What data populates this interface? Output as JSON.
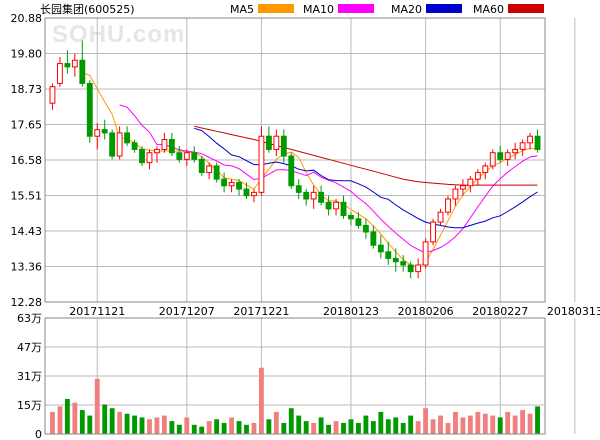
{
  "header": {
    "title": "长园集团(600525)",
    "watermark": "SOHU.com"
  },
  "legend": [
    {
      "name": "MA5",
      "color": "#ff9900"
    },
    {
      "name": "MA10",
      "color": "#ff00ff"
    },
    {
      "name": "MA20",
      "color": "#0000cc"
    },
    {
      "name": "MA60",
      "color": "#cc0000"
    }
  ],
  "colors": {
    "up": "#ff0000",
    "down": "#009900",
    "volume_up": "#f08080",
    "volume_down": "#009900",
    "grid": "#bbbbbb"
  },
  "chart_data": [
    {
      "type": "candlestick",
      "title": "长园集团(600525)",
      "ylim": [
        12.28,
        20.88
      ],
      "yticks": [
        "20.88",
        "19.80",
        "18.73",
        "17.65",
        "16.58",
        "15.51",
        "14.43",
        "13.36",
        "12.28"
      ],
      "xticks": [
        {
          "label": "20171121",
          "index": 6
        },
        {
          "label": "20171207",
          "index": 18
        },
        {
          "label": "20171221",
          "index": 28
        },
        {
          "label": "20180123",
          "index": 40
        },
        {
          "label": "20180206",
          "index": 50
        },
        {
          "label": "20180227",
          "index": 60
        },
        {
          "label": "20180313",
          "index": 70
        }
      ],
      "ohlc": [
        [
          18.3,
          18.9,
          18.1,
          18.8
        ],
        [
          18.9,
          19.7,
          18.8,
          19.5
        ],
        [
          19.5,
          19.9,
          19.2,
          19.4
        ],
        [
          19.4,
          19.8,
          19.1,
          19.6
        ],
        [
          19.6,
          20.2,
          18.8,
          18.9
        ],
        [
          18.9,
          19.0,
          17.1,
          17.3
        ],
        [
          17.3,
          17.7,
          16.9,
          17.5
        ],
        [
          17.5,
          17.8,
          17.2,
          17.4
        ],
        [
          17.4,
          17.5,
          16.6,
          16.7
        ],
        [
          16.7,
          17.6,
          16.6,
          17.4
        ],
        [
          17.4,
          17.6,
          17.0,
          17.1
        ],
        [
          17.1,
          17.2,
          16.8,
          16.9
        ],
        [
          16.9,
          17.0,
          16.4,
          16.5
        ],
        [
          16.5,
          16.9,
          16.3,
          16.8
        ],
        [
          16.8,
          17.0,
          16.5,
          16.9
        ],
        [
          16.9,
          17.4,
          16.8,
          17.2
        ],
        [
          17.2,
          17.4,
          16.7,
          16.8
        ],
        [
          16.8,
          17.0,
          16.5,
          16.6
        ],
        [
          16.6,
          16.9,
          16.4,
          16.8
        ],
        [
          16.8,
          17.0,
          16.5,
          16.6
        ],
        [
          16.6,
          16.7,
          16.1,
          16.2
        ],
        [
          16.2,
          16.5,
          16.0,
          16.4
        ],
        [
          16.4,
          16.5,
          15.9,
          16.0
        ],
        [
          16.0,
          16.2,
          15.6,
          15.8
        ],
        [
          15.8,
          16.0,
          15.6,
          15.9
        ],
        [
          15.9,
          16.0,
          15.5,
          15.7
        ],
        [
          15.7,
          15.9,
          15.4,
          15.5
        ],
        [
          15.5,
          15.7,
          15.3,
          15.6
        ],
        [
          15.6,
          17.6,
          15.5,
          17.3
        ],
        [
          17.3,
          17.6,
          16.8,
          16.9
        ],
        [
          16.9,
          17.5,
          16.7,
          17.3
        ],
        [
          17.3,
          17.5,
          16.5,
          16.7
        ],
        [
          16.7,
          16.8,
          15.7,
          15.8
        ],
        [
          15.8,
          16.0,
          15.4,
          15.6
        ],
        [
          15.6,
          15.7,
          15.2,
          15.4
        ],
        [
          15.4,
          15.8,
          15.1,
          15.6
        ],
        [
          15.6,
          15.8,
          15.2,
          15.3
        ],
        [
          15.3,
          15.5,
          14.9,
          15.1
        ],
        [
          15.1,
          15.4,
          14.9,
          15.3
        ],
        [
          15.3,
          15.5,
          14.8,
          14.9
        ],
        [
          14.9,
          15.0,
          14.6,
          14.8
        ],
        [
          14.8,
          15.0,
          14.5,
          14.6
        ],
        [
          14.6,
          14.8,
          14.2,
          14.4
        ],
        [
          14.4,
          14.6,
          13.9,
          14.0
        ],
        [
          14.0,
          14.3,
          13.6,
          13.8
        ],
        [
          13.8,
          14.1,
          13.4,
          13.6
        ],
        [
          13.6,
          13.9,
          13.2,
          13.5
        ],
        [
          13.5,
          13.7,
          13.2,
          13.4
        ],
        [
          13.4,
          13.5,
          13.0,
          13.2
        ],
        [
          13.2,
          13.6,
          13.0,
          13.4
        ],
        [
          13.4,
          14.2,
          13.3,
          14.1
        ],
        [
          14.1,
          14.8,
          14.0,
          14.7
        ],
        [
          14.7,
          15.1,
          14.6,
          15.0
        ],
        [
          15.0,
          15.5,
          14.9,
          15.4
        ],
        [
          15.4,
          15.8,
          15.2,
          15.7
        ],
        [
          15.7,
          16.0,
          15.5,
          15.8
        ],
        [
          15.8,
          16.1,
          15.6,
          16.0
        ],
        [
          16.0,
          16.3,
          15.8,
          16.2
        ],
        [
          16.2,
          16.5,
          16.0,
          16.4
        ],
        [
          16.4,
          16.9,
          16.3,
          16.8
        ],
        [
          16.8,
          17.0,
          16.5,
          16.6
        ],
        [
          16.6,
          16.9,
          16.4,
          16.8
        ],
        [
          16.8,
          17.1,
          16.6,
          16.9
        ],
        [
          16.9,
          17.2,
          16.7,
          17.1
        ],
        [
          17.1,
          17.4,
          16.9,
          17.3
        ],
        [
          17.3,
          17.5,
          16.8,
          16.9
        ]
      ],
      "ma": {
        "MA5": [
          null,
          null,
          null,
          null,
          19.24,
          19.14,
          18.74,
          18.34,
          17.96,
          17.26,
          17.22,
          17.1,
          16.92,
          16.88,
          16.84,
          16.86,
          16.84,
          16.86,
          16.82,
          16.8,
          16.68,
          16.48,
          16.28,
          16.04,
          16.0,
          15.96,
          15.82,
          15.7,
          16.02,
          16.3,
          16.6,
          16.76,
          16.82,
          16.66,
          16.2,
          15.82,
          15.52,
          15.34,
          15.34,
          15.24,
          15.08,
          14.94,
          14.8,
          14.58,
          14.34,
          14.06,
          13.8,
          13.56,
          13.4,
          13.34,
          13.48,
          13.88,
          14.3,
          14.74,
          15.18,
          15.52,
          15.78,
          16.02,
          16.22,
          16.4,
          16.5,
          16.64,
          16.74,
          16.86,
          16.94,
          16.9
        ],
        "MA10": [
          null,
          null,
          null,
          null,
          null,
          null,
          null,
          null,
          null,
          18.25,
          18.18,
          17.92,
          17.63,
          17.42,
          17.05,
          17.04,
          16.97,
          16.89,
          16.85,
          16.82,
          16.77,
          16.66,
          16.55,
          16.43,
          16.4,
          16.32,
          16.15,
          15.99,
          16.03,
          16.15,
          16.28,
          16.29,
          16.26,
          16.18,
          16.11,
          16.21,
          16.06,
          15.97,
          15.89,
          15.76,
          15.63,
          15.43,
          15.26,
          15.03,
          14.79,
          14.57,
          14.37,
          14.18,
          13.99,
          13.87,
          13.77,
          13.84,
          13.93,
          14.07,
          14.26,
          14.5,
          14.83,
          15.16,
          15.48,
          15.79,
          16.01,
          16.21,
          16.38,
          16.54,
          16.67,
          16.71
        ],
        "MA20": [
          null,
          null,
          null,
          null,
          null,
          null,
          null,
          null,
          null,
          null,
          null,
          null,
          null,
          null,
          null,
          null,
          null,
          null,
          null,
          17.54,
          17.47,
          17.29,
          17.09,
          16.92,
          16.73,
          16.68,
          16.56,
          16.44,
          16.44,
          16.48,
          16.52,
          16.47,
          16.4,
          16.3,
          16.25,
          16.27,
          16.11,
          15.98,
          15.96,
          15.95,
          15.95,
          15.86,
          15.76,
          15.61,
          15.45,
          15.39,
          15.22,
          15.07,
          14.94,
          14.81,
          14.7,
          14.64,
          14.6,
          14.55,
          14.53,
          14.53,
          14.6,
          14.67,
          14.73,
          14.83,
          14.89,
          15.02,
          15.16,
          15.31,
          15.47,
          15.61
        ],
        "MA60": [
          null,
          null,
          null,
          null,
          null,
          null,
          null,
          null,
          null,
          null,
          null,
          null,
          null,
          null,
          null,
          null,
          null,
          null,
          null,
          17.6,
          17.55,
          17.5,
          17.45,
          17.4,
          17.35,
          17.3,
          17.25,
          17.2,
          17.14,
          17.08,
          17.02,
          16.96,
          16.9,
          16.84,
          16.78,
          16.72,
          16.66,
          16.6,
          16.54,
          16.48,
          16.42,
          16.36,
          16.3,
          16.24,
          16.18,
          16.12,
          16.06,
          16.0,
          15.96,
          15.92,
          15.9,
          15.88,
          15.86,
          15.84,
          15.83,
          15.82,
          15.82,
          15.82,
          15.82,
          15.82,
          15.82,
          15.82,
          15.82,
          15.82,
          15.82,
          15.82
        ]
      }
    },
    {
      "type": "bar",
      "title": "",
      "yticks": [
        "63万",
        "47万",
        "31万",
        "15万",
        "0"
      ],
      "ylim": [
        0,
        63
      ],
      "unit": "万",
      "values": [
        12,
        15,
        19,
        17,
        13,
        10,
        30,
        16,
        14,
        12,
        11,
        10,
        9,
        8,
        9,
        10,
        7,
        5,
        9,
        5,
        4,
        7,
        8,
        6,
        9,
        7,
        5,
        6,
        36,
        8,
        12,
        6,
        14,
        10,
        7,
        6,
        9,
        5,
        7,
        6,
        8,
        6,
        10,
        7,
        12,
        8,
        9,
        6,
        10,
        7,
        14,
        8,
        10,
        6,
        12,
        9,
        10,
        12,
        11,
        10,
        9,
        12,
        10,
        13,
        11,
        15
      ]
    }
  ]
}
